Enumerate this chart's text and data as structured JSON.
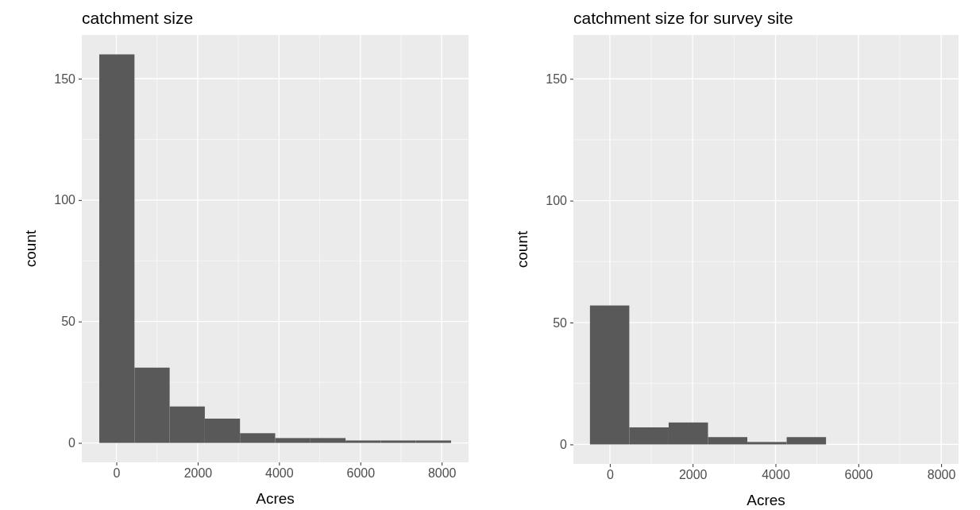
{
  "chart_data": [
    {
      "type": "histogram",
      "title": "catchment size",
      "xlabel": "Acres",
      "ylabel": "count",
      "bins": [
        -420,
        445,
        1310,
        2175,
        3040,
        3905,
        4770,
        5635,
        6500,
        7365,
        8230
      ],
      "values": [
        160,
        31,
        15,
        10,
        4,
        2,
        2,
        1,
        1,
        1
      ],
      "color": "#595959",
      "xlim": [
        -850,
        8660
      ],
      "xticks": [
        0,
        2000,
        4000,
        6000,
        8000
      ],
      "ylim": [
        -8,
        168
      ],
      "yticks": [
        0,
        50,
        100,
        150
      ],
      "grid": true
    },
    {
      "type": "histogram",
      "title": "catchment size for survey site",
      "xlabel": "Acres",
      "ylabel": "count",
      "bins": [
        -480,
        470,
        1420,
        2370,
        3320,
        4270,
        5220
      ],
      "values": [
        57,
        7,
        9,
        3,
        1,
        3
      ],
      "color": "#595959",
      "xlim": [
        -880,
        8420
      ],
      "xticks": [
        0,
        2000,
        4000,
        6000,
        8000
      ],
      "ylim": [
        -8,
        168
      ],
      "yticks": [
        0,
        50,
        100,
        150
      ],
      "grid": true
    }
  ]
}
